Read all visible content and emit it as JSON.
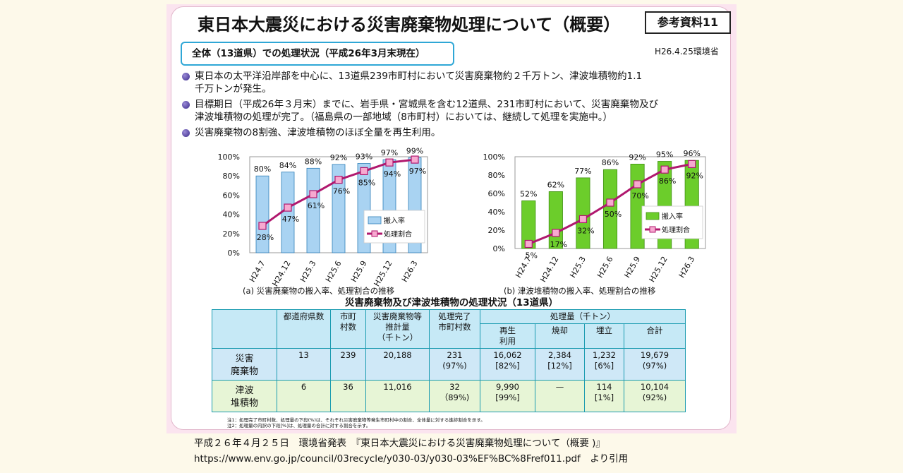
{
  "title": "東日本大震災における災害廃棄物処理について（概要）",
  "ref_label": "参考資料11",
  "date_label": "H26.4.25環境省",
  "section_label": "全体（13道県）での処理状況（平成26年3月末現在）",
  "bullets": [
    [
      "東日本の太平洋沿岸部を中心に、13道県239市町村において災害廃棄物約２千万トン、津波堆積物約1.1",
      "千万トンが発生。"
    ],
    [
      "目標期日（平成26年３月末）までに、岩手県・宮城県を含む12道県、231市町村において、災害廃棄物及び",
      "津波堆積物の処理が完了。（福島県の一部地域（8市町村）においては、継続して処理を実施中。）"
    ],
    [
      "災害廃棄物の8割強、津波堆積物のほぼ全量を再生利用。"
    ]
  ],
  "chart_data": [
    {
      "type": "bar",
      "caption": "(a)  災害廃棄物の搬入率、処理割合の推移",
      "categories": [
        "H24.7",
        "H24.12",
        "H25.3",
        "H25.6",
        "H25.9",
        "H25.12",
        "H26.3"
      ],
      "ylim": [
        0,
        100
      ],
      "yticks": [
        "0%",
        "20%",
        "40%",
        "60%",
        "80%",
        "100%"
      ],
      "series": [
        {
          "name": "搬入率",
          "kind": "bar",
          "values": [
            80,
            84,
            88,
            92,
            93,
            97,
            99
          ],
          "labels": [
            "80%",
            "84%",
            "88%",
            "92%",
            "93%",
            "97%",
            "99%"
          ]
        },
        {
          "name": "処理割合",
          "kind": "line",
          "values": [
            28,
            47,
            61,
            76,
            85,
            94,
            97
          ],
          "labels": [
            "28%",
            "47%",
            "61%",
            "76%",
            "85%",
            "94%",
            "97%"
          ]
        }
      ],
      "colors": {
        "bar": "#a9d3f2",
        "bar_edge": "#2f7fb8",
        "line": "#b0186e",
        "marker": "#f7a9d0"
      }
    },
    {
      "type": "bar",
      "caption": "(b)  津波堆積物の搬入率、処理割合の推移",
      "categories": [
        "H24.7",
        "H24.12",
        "H25.3",
        "H25.6",
        "H25.9",
        "H25.12",
        "H26.3"
      ],
      "ylim": [
        0,
        100
      ],
      "yticks": [
        "0%",
        "20%",
        "40%",
        "60%",
        "80%",
        "100%"
      ],
      "series": [
        {
          "name": "搬入率",
          "kind": "bar",
          "values": [
            52,
            62,
            77,
            86,
            92,
            95,
            96
          ],
          "labels": [
            "52%",
            "62%",
            "77%",
            "86%",
            "92%",
            "95%",
            "96%"
          ]
        },
        {
          "name": "処理割合",
          "kind": "line",
          "values": [
            5,
            17,
            32,
            50,
            70,
            86,
            92
          ],
          "labels": [
            "5%",
            "17%",
            "32%",
            "50%",
            "70%",
            "86%",
            "92%"
          ]
        }
      ],
      "colors": {
        "bar": "#6ccd2b",
        "bar_edge": "#3f8f12",
        "line": "#b0186e",
        "marker": "#f7a9d0"
      }
    }
  ],
  "table": {
    "title": "災害廃棄物及び津波堆積物の処理状況（13道県）",
    "headers": {
      "pref": "都道府県数",
      "muni": [
        "市町",
        "村数"
      ],
      "est": [
        "災害廃棄物等",
        "推計量",
        "（千トン）"
      ],
      "done": [
        "処理完了",
        "市町村数"
      ],
      "amount": "処理量（千トン）",
      "recycle": [
        "再生",
        "利用"
      ],
      "incin": "焼却",
      "landfill": "埋立",
      "total": "合計"
    },
    "rows": [
      {
        "label": [
          "災害",
          "廃棄物"
        ],
        "pref": "13",
        "muni": "239",
        "est": "20,188",
        "done": [
          "231",
          "(97%)"
        ],
        "recycle": [
          "16,062",
          "[82%]"
        ],
        "incin": [
          "2,384",
          "[12%]"
        ],
        "landfill": [
          "1,232",
          "[6%]"
        ],
        "total": [
          "19,679",
          "(97%)"
        ]
      },
      {
        "label": [
          "津波",
          "堆積物"
        ],
        "pref": "6",
        "muni": "36",
        "est": "11,016",
        "done": [
          "32",
          "（89%)"
        ],
        "recycle": [
          "9,990",
          "[99%]"
        ],
        "incin": [
          "—",
          ""
        ],
        "landfill": [
          "114",
          "[1%]"
        ],
        "total": [
          "10,104",
          "(92%)"
        ]
      }
    ],
    "notes": [
      "注1：処理完了市町村数、処理量の下段(%)は、それぞれ災害廃棄物等発生市町村中の割合、全体量に対する進捗割合を示す。",
      "注2：処理量の内訳の下段[%]は、処理量の合計に対する割合を示す。"
    ]
  },
  "caption_lines": [
    "平成２６年４月２５日　環境省発表　『東日本大震災における災害廃棄物処理について（概要 )』",
    "https://www.env.go.jp/council/03recycle/y030-03/y030-03%EF%BC%8Fref011.pdf　より引用"
  ]
}
